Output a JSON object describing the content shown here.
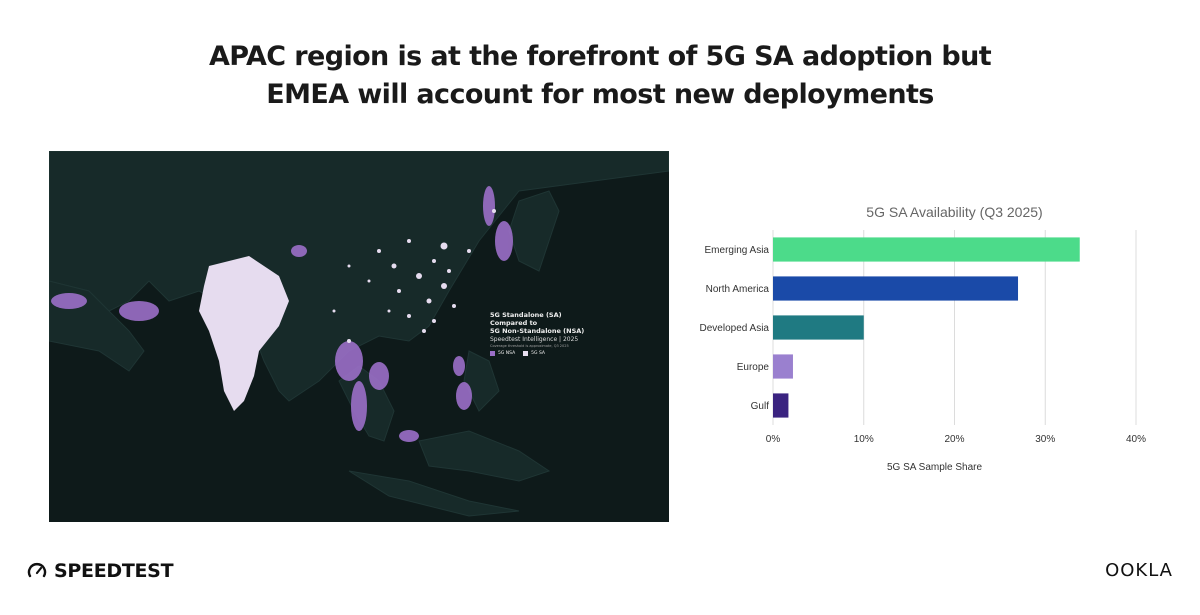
{
  "headline": {
    "line1": "APAC region is at the forefront of 5G SA adoption but",
    "line2": "EMEA will account for most new deployments"
  },
  "map": {
    "legend_title_line1": "5G Standalone (SA)",
    "legend_title_line2": "Compared to",
    "legend_title_line3": "5G Non-Standalone (NSA)",
    "legend_source": "Speedtest Intelligence | 2025",
    "legend_note": "Coverage threshold is approximate, Q3 2025",
    "legend_items": [
      {
        "label": "5G NSA",
        "color": "#9b6fc8"
      },
      {
        "label": "5G SA",
        "color": "#e8dff0"
      }
    ]
  },
  "chart_data": {
    "type": "bar",
    "orientation": "horizontal",
    "title": "5G SA Availability (Q3 2025)",
    "xlabel": "5G SA Sample Share",
    "ylabel": "",
    "categories": [
      "Emerging Asia",
      "North America",
      "Developed Asia",
      "Europe",
      "Gulf"
    ],
    "values": [
      33.8,
      27.0,
      10.0,
      2.2,
      1.7
    ],
    "colors": [
      "#4cdb8a",
      "#1a4aa8",
      "#1f7a82",
      "#9a80cf",
      "#3a2380"
    ],
    "xlim": [
      0,
      40
    ],
    "ticks": [
      0,
      10,
      20,
      30,
      40
    ],
    "tick_labels": [
      "0%",
      "10%",
      "20%",
      "30%",
      "40%"
    ],
    "grid": true
  },
  "footer": {
    "left_brand": "SPEEDTEST",
    "right_brand": "OOKLA"
  }
}
